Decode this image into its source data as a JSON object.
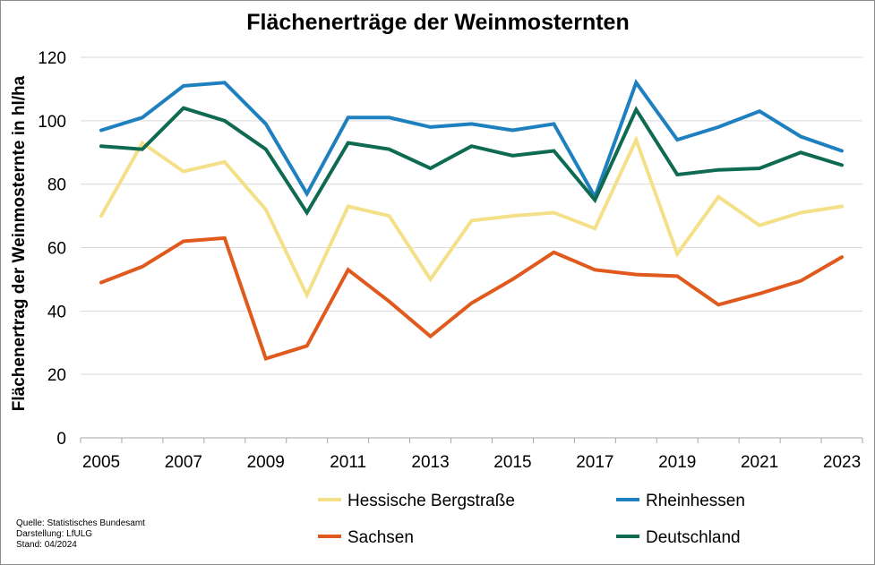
{
  "chart_data": {
    "type": "line",
    "title": "Flächenerträge der Weinmosternten",
    "ylabel": "Flächenertrag der Weinmosternte in hl/ha",
    "xlabel": "",
    "x": [
      2005,
      2006,
      2007,
      2008,
      2009,
      2010,
      2011,
      2012,
      2013,
      2014,
      2015,
      2016,
      2017,
      2018,
      2019,
      2020,
      2021,
      2022,
      2023
    ],
    "x_tick_labels": [
      "2005",
      "2007",
      "2009",
      "2011",
      "2013",
      "2015",
      "2017",
      "2019",
      "2021",
      "2023"
    ],
    "y_tick_labels": [
      "0",
      "20",
      "40",
      "60",
      "80",
      "100",
      "120"
    ],
    "ylim": [
      0,
      120
    ],
    "grid": "horizontal",
    "legend_position": "bottom",
    "series": [
      {
        "name": "Hessische Bergstraße",
        "color": "#f5e08a",
        "values": [
          70,
          93,
          84,
          87,
          72,
          45,
          73,
          70,
          50,
          68.5,
          70,
          71,
          66,
          94,
          58,
          76,
          67,
          71,
          73
        ]
      },
      {
        "name": "Rheinhessen",
        "color": "#1f80c0",
        "values": [
          97,
          101,
          111,
          112,
          99,
          77,
          101,
          101,
          98,
          99,
          97,
          99,
          76,
          112,
          94,
          98,
          103,
          95,
          90.5
        ]
      },
      {
        "name": "Sachsen",
        "color": "#e05a1e",
        "values": [
          49,
          54,
          62,
          63,
          25,
          29,
          53,
          43,
          32,
          42.5,
          50,
          58.5,
          53,
          51.5,
          51,
          42,
          45.5,
          49.5,
          57
        ]
      },
      {
        "name": "Deutschland",
        "color": "#0f6a52",
        "values": [
          92,
          91,
          104,
          100,
          91,
          71,
          93,
          91,
          85,
          92,
          89,
          90.5,
          75,
          103.5,
          83,
          84.5,
          85,
          90,
          86
        ]
      }
    ]
  },
  "source": {
    "quelle": "Quelle: Statistisches Bundesamt",
    "darstellung": "Darstellung: LfULG",
    "stand": "Stand: 04/2024"
  }
}
